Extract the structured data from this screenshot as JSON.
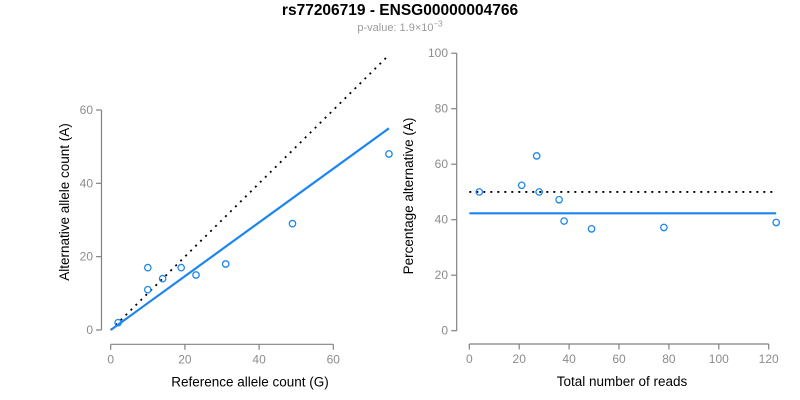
{
  "header": {
    "title": "rs77206719 - ENSG00000004766",
    "subtitle_text": "p-value: 1.9×10",
    "subtitle_exponent": "−3"
  },
  "colors": {
    "point_blue": "#1c86ee",
    "line_blue": "#1c86ee",
    "dotted_black": "#000000",
    "axis_gray": "#828282",
    "tick_label_gray": "#8c8c8c",
    "axis_title_black": "#000000",
    "background": "#ffffff"
  },
  "chart_data": [
    {
      "type": "scatter",
      "title": "rs77206719 - ENSG00000004766",
      "subtitle": "p-value: 1.9×10−3",
      "xlabel": "Reference allele count (G)",
      "ylabel": "Alternative allele count (A)",
      "xticks": [
        0,
        20,
        40,
        60
      ],
      "yticks": [
        0,
        20,
        40,
        60
      ],
      "xlim": [
        0,
        75
      ],
      "ylim": [
        0,
        75
      ],
      "grid": false,
      "legend": "none",
      "points": [
        {
          "x": 2,
          "y": 2
        },
        {
          "x": 10,
          "y": 11
        },
        {
          "x": 10,
          "y": 17
        },
        {
          "x": 14,
          "y": 14
        },
        {
          "x": 19,
          "y": 17
        },
        {
          "x": 23,
          "y": 15
        },
        {
          "x": 31,
          "y": 18
        },
        {
          "x": 49,
          "y": 29
        },
        {
          "x": 75,
          "y": 48
        }
      ],
      "lines": [
        {
          "name": "identity-line",
          "style": "dotted",
          "color": "#000000",
          "from": [
            0,
            0
          ],
          "to": [
            75,
            75
          ]
        },
        {
          "name": "fit-line",
          "style": "solid",
          "color": "#1c86ee",
          "from": [
            0,
            0
          ],
          "to": [
            75,
            55
          ],
          "slope": 0.733
        }
      ]
    },
    {
      "type": "scatter",
      "xlabel": "Total number of reads",
      "ylabel": "Percentage alternative (A)",
      "xticks": [
        0,
        20,
        40,
        60,
        80,
        100,
        120
      ],
      "yticks": [
        0,
        20,
        40,
        60,
        80,
        100
      ],
      "xlim": [
        0,
        123
      ],
      "ylim": [
        0,
        100
      ],
      "grid": false,
      "legend": "none",
      "points": [
        {
          "x": 4,
          "y": 50
        },
        {
          "x": 21,
          "y": 52.4
        },
        {
          "x": 27,
          "y": 63
        },
        {
          "x": 28,
          "y": 50
        },
        {
          "x": 36,
          "y": 47.2
        },
        {
          "x": 38,
          "y": 39.5
        },
        {
          "x": 49,
          "y": 36.7
        },
        {
          "x": 78,
          "y": 37.2
        },
        {
          "x": 123,
          "y": 39
        }
      ],
      "lines": [
        {
          "name": "reference-50pct-line",
          "style": "dotted",
          "color": "#000000",
          "from": [
            0,
            50
          ],
          "to": [
            123,
            50
          ]
        },
        {
          "name": "mean-pct-line",
          "style": "solid",
          "color": "#1c86ee",
          "from": [
            0,
            42.3
          ],
          "to": [
            123,
            42.3
          ],
          "value": 42.3
        }
      ]
    }
  ]
}
